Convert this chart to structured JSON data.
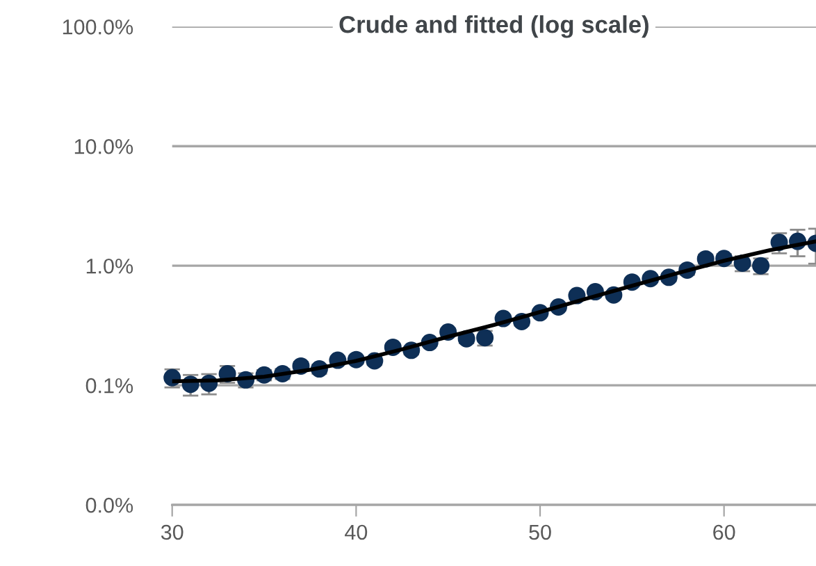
{
  "chart_data": {
    "type": "scatter",
    "title": "Crude and fitted (log scale)",
    "x": [
      30,
      31,
      32,
      33,
      34,
      35,
      36,
      37,
      38,
      39,
      40,
      41,
      42,
      43,
      44,
      45,
      46,
      47,
      48,
      49,
      50,
      51,
      52,
      53,
      54,
      55,
      56,
      57,
      58,
      59,
      60,
      61,
      62,
      63,
      64,
      65
    ],
    "series": [
      {
        "color": "#0e2f56",
        "marker": "circle",
        "values": [
          0.116,
          0.102,
          0.104,
          0.125,
          0.111,
          0.122,
          0.125,
          0.145,
          0.137,
          0.162,
          0.164,
          0.16,
          0.208,
          0.196,
          0.228,
          0.279,
          0.245,
          0.25,
          0.362,
          0.341,
          0.404,
          0.452,
          0.563,
          0.606,
          0.569,
          0.73,
          0.78,
          0.8,
          0.92,
          1.14,
          1.15,
          1.05,
          1.0,
          1.57,
          1.6,
          1.54
        ],
        "errors": [
          0.02,
          0.02,
          0.02,
          0.02,
          0.015,
          0.012,
          0.012,
          0.012,
          0.012,
          0.012,
          0.012,
          0.012,
          0.015,
          0.015,
          0.015,
          0.02,
          0.02,
          0.035,
          0.025,
          0.025,
          0.025,
          0.03,
          0.04,
          0.04,
          0.04,
          0.05,
          0.05,
          0.06,
          0.08,
          0.1,
          0.1,
          0.15,
          0.15,
          0.3,
          0.4,
          0.5
        ]
      },
      {
        "type": "line",
        "color": "#000000",
        "marker": "none",
        "x": [
          30,
          32.5,
          35,
          37.5,
          40,
          42.5,
          45,
          47.5,
          50,
          52.5,
          55,
          57.5,
          60,
          62.5,
          65
        ],
        "values": [
          0.108,
          0.11,
          0.118,
          0.135,
          0.16,
          0.2,
          0.255,
          0.32,
          0.41,
          0.53,
          0.68,
          0.87,
          1.1,
          1.35,
          1.6
        ]
      }
    ],
    "log": "y",
    "xlim": [
      30,
      65
    ],
    "xticks": [
      30,
      40,
      50,
      60
    ],
    "ylim": [
      0.01,
      100
    ],
    "yticks": [
      {
        "value": 0.01,
        "label": "0.0%"
      },
      {
        "value": 0.1,
        "label": "0.1%"
      },
      {
        "value": 1,
        "label": "1.0%"
      },
      {
        "value": 10,
        "label": "10.0%"
      },
      {
        "value": 100,
        "label": "100.0%"
      }
    ],
    "grid": "y",
    "legend": false
  }
}
